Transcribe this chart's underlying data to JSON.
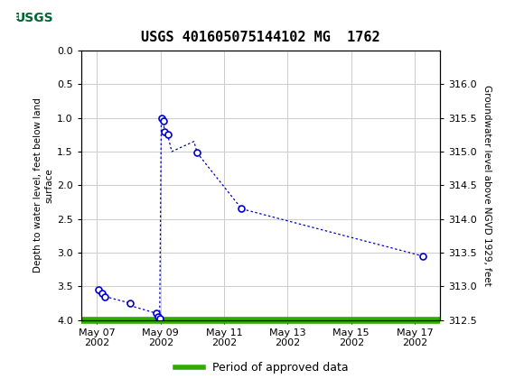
{
  "title": "USGS 401605075144102 MG  1762",
  "ylabel_left": "Depth to water level, feet below land\nsurface",
  "ylabel_right": "Groundwater level above NGVD 1929, feet",
  "ylim_left": [
    4.0,
    0.0
  ],
  "yticks_left": [
    0.0,
    0.5,
    1.0,
    1.5,
    2.0,
    2.5,
    3.0,
    3.5,
    4.0
  ],
  "ytick_labels_left": [
    "0.0",
    "0.5",
    "1.0",
    "1.5",
    "2.0",
    "2.5",
    "3.0",
    "3.5",
    "4.0"
  ],
  "right_elev_ticks": [
    312.5,
    313.0,
    313.5,
    314.0,
    314.5,
    315.0,
    315.5,
    316.0
  ],
  "right_depth_positions": [
    4.0,
    3.5,
    3.0,
    2.5,
    2.0,
    1.5,
    1.0,
    0.5
  ],
  "xtick_positions": [
    0,
    2,
    4,
    6,
    8,
    10
  ],
  "xtick_labels": [
    "May 07\n2002",
    "May 09\n2002",
    "May 11\n2002",
    "May 13\n2002",
    "May 15\n2002",
    "May 17\n2002"
  ],
  "xlim": [
    -0.5,
    10.8
  ],
  "x_days": [
    0.05,
    0.15,
    0.25,
    1.05,
    1.15,
    1.87,
    1.93,
    1.97,
    2.02,
    2.08,
    2.13,
    2.22,
    2.35,
    3.05,
    3.15,
    4.55,
    10.25
  ],
  "y_depth": [
    3.55,
    3.6,
    3.65,
    3.75,
    3.8,
    3.9,
    3.95,
    3.98,
    1.0,
    1.05,
    1.2,
    1.25,
    1.5,
    1.35,
    1.52,
    2.35,
    3.05
  ],
  "marker_indices": [
    0,
    1,
    2,
    3,
    5,
    6,
    7,
    8,
    9,
    10,
    11,
    14,
    15,
    16
  ],
  "line_color": "#0000CC",
  "marker_edgecolor": "#0000CC",
  "marker_facecolor": "#ffffff",
  "grid_color": "#cccccc",
  "green_bar_color": "#33AA00",
  "legend_label": "Period of approved data",
  "header_bg": "#006633",
  "header_text": "USGS",
  "bg_color": "#ffffff",
  "title_fontsize": 11,
  "axis_fontsize": 7.5,
  "tick_fontsize": 8,
  "legend_fontsize": 9
}
